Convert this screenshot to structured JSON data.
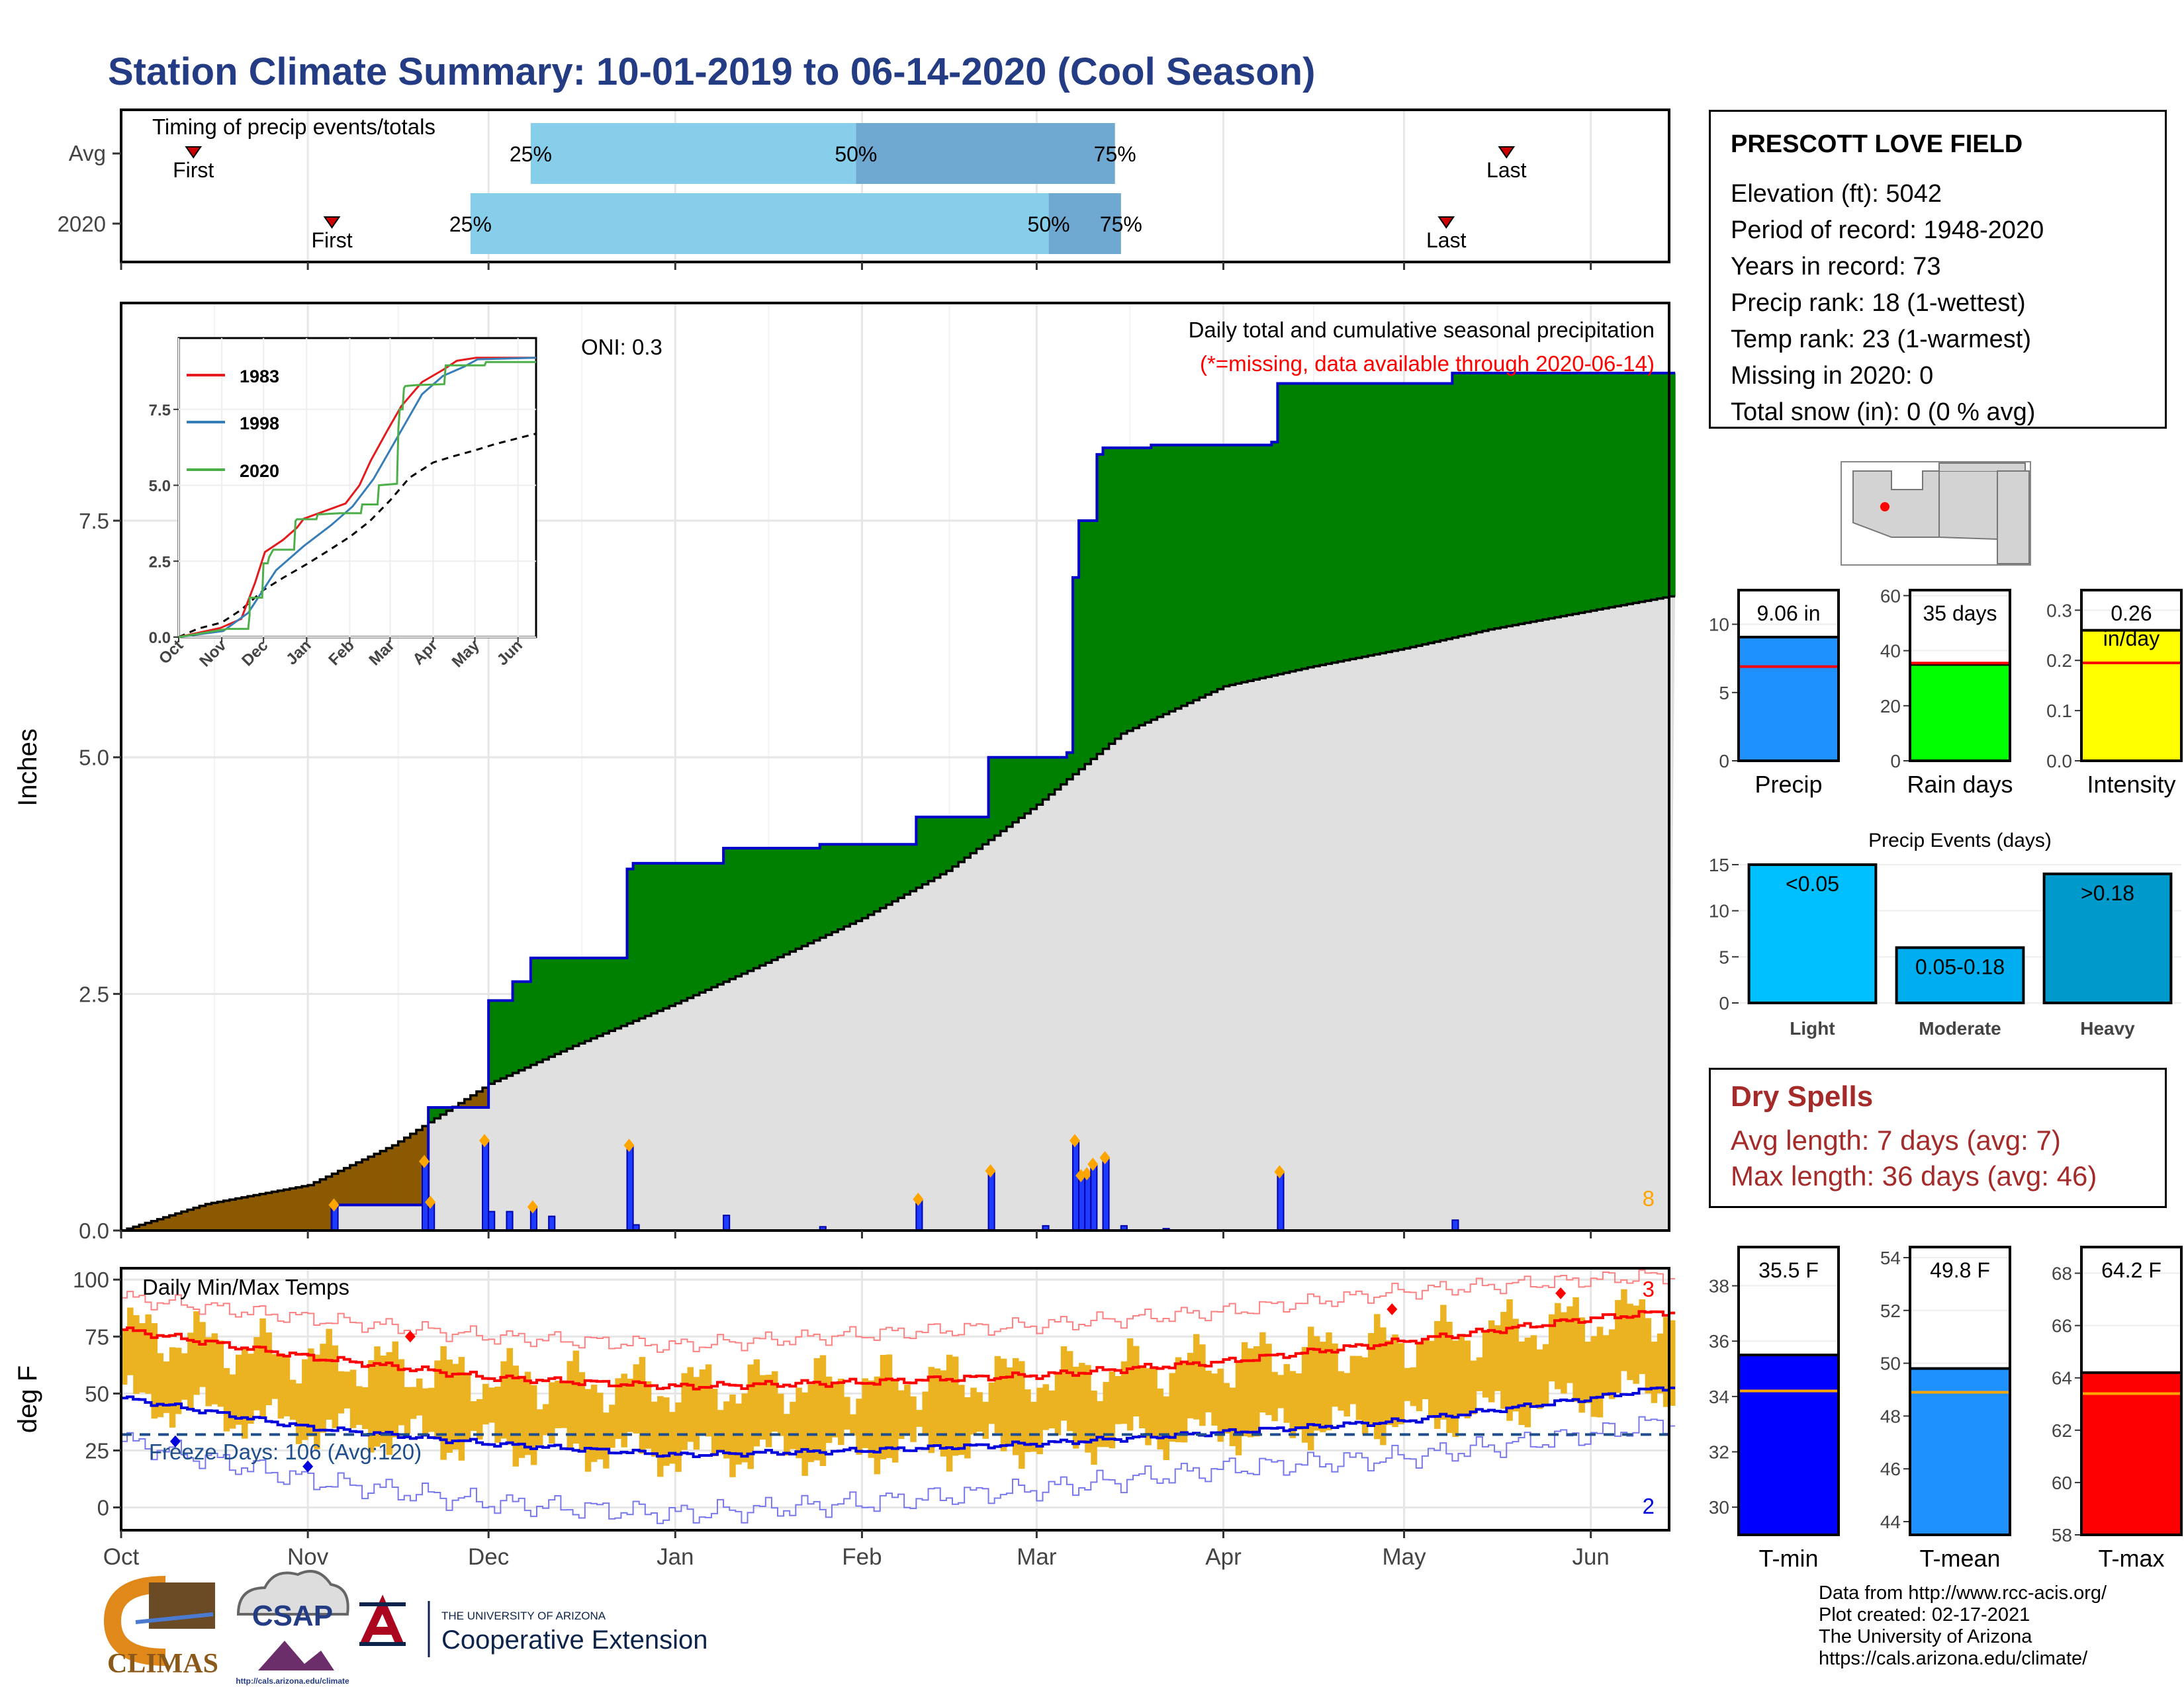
{
  "title": "Station Climate Summary: 10-01-2019 to 06-14-2020 (Cool Season)",
  "timing": {
    "label": "Timing of precip events/totals",
    "rows": [
      "Avg",
      "2020"
    ],
    "avg": {
      "first": "2019-10-13",
      "p25": "2019-12-08",
      "p50": "2020-01-31",
      "p75": "2020-03-14",
      "last": "2020-05-18"
    },
    "season2020": {
      "first": "2019-11-05",
      "p25": "2019-11-28",
      "p50": "2020-03-03",
      "p75": "2020-03-15",
      "last": "2020-05-08"
    },
    "first_label": "First",
    "last_label": "Last",
    "p25_label": "25%",
    "p50_label": "50%",
    "p75_label": "75%"
  },
  "months": [
    "Oct",
    "Nov",
    "Dec",
    "Jan",
    "Feb",
    "Mar",
    "Apr",
    "May",
    "Jun"
  ],
  "precip": {
    "title": "Daily total and cumulative seasonal precipitation",
    "subtitle": "(*=missing, data available through 2020-06-14)",
    "oni": "ONI: 0.3",
    "ylabel": "Inches",
    "yticks": [
      "0.0",
      "2.5",
      "5.0",
      "7.5"
    ],
    "corner_count": "8",
    "colors": {
      "above": "#008000",
      "below": "#8b5a00",
      "normal_fill": "#e0e0e0",
      "obs_line": "#0000cc",
      "daily": "#1e3cff",
      "marker": "#ffa500"
    }
  },
  "inset": {
    "legend": [
      "1983",
      "1998",
      "2020"
    ],
    "colors": [
      "#e41a1c",
      "#377eb8",
      "#4daf4a"
    ],
    "yticks": [
      "0.0",
      "2.5",
      "5.0",
      "7.5"
    ],
    "months": [
      "Oct",
      "Nov",
      "Dec",
      "Jan",
      "Feb",
      "Mar",
      "Apr",
      "May",
      "Jun"
    ]
  },
  "temps": {
    "title": "Daily Min/Max Temps",
    "ylabel": "deg F",
    "yticks": [
      "0",
      "25",
      "50",
      "75",
      "100"
    ],
    "freeze": "Freeze Days: 106 (Avg:120)",
    "count_top": "3",
    "count_bottom": "2",
    "freeze_line": 32,
    "colors": {
      "bars": "#ebb321",
      "max_normal": "#ff0000",
      "min_normal": "#0000dd",
      "record_high": "#ff8080",
      "record_low": "#7777ee",
      "freeze": "#1f4e8c"
    }
  },
  "station": {
    "name": "PRESCOTT LOVE FIELD",
    "lines": [
      "Elevation (ft): 5042",
      "Period of record: 1948-2020",
      "Years in record: 73",
      "Precip rank: 18 (1-wettest)",
      "Temp rank: 23 (1-warmest)",
      "Missing in 2020: 0",
      "Total snow (in): 0 (0 % avg)"
    ]
  },
  "summary_bars": [
    {
      "label": "Precip",
      "value_text": "9.06 in",
      "value": 9.06,
      "avg": 6.9,
      "ymax": 12.5,
      "ticks": [
        "0",
        "5",
        "10"
      ],
      "tickvals": [
        0,
        5,
        10
      ],
      "color": "#1e90ff"
    },
    {
      "label": "Rain days",
      "value_text": "35 days",
      "value": 35,
      "avg": 35.5,
      "ymax": 62,
      "ticks": [
        "0",
        "20",
        "40",
        "60"
      ],
      "tickvals": [
        0,
        20,
        40,
        60
      ],
      "color": "#00ff00"
    },
    {
      "label": "Intensity",
      "value_text": "0.26 in/day",
      "value": 0.26,
      "avg": 0.195,
      "ymax": 0.34,
      "ticks": [
        "0.0",
        "0.1",
        "0.2",
        "0.3"
      ],
      "tickvals": [
        0,
        0.1,
        0.2,
        0.3
      ],
      "color": "#ffff00"
    }
  ],
  "precip_events": {
    "title": "Precip Events (days)",
    "categories": [
      "Light",
      "Moderate",
      "Heavy"
    ],
    "bar_labels": [
      "<0.05",
      "0.05-0.18",
      ">0.18"
    ],
    "values": [
      15,
      6,
      14
    ],
    "yticks": [
      "0",
      "5",
      "10",
      "15"
    ],
    "colors": [
      "#00bfff",
      "#00aeef",
      "#0099cc"
    ]
  },
  "dry_spells": {
    "title": "Dry Spells",
    "avg": "Avg length: 7 days (avg: 7)",
    "max": "Max length: 36 days (avg: 46)"
  },
  "temp_bars": [
    {
      "label": "T-min",
      "value_text": "35.5 F",
      "value": 35.5,
      "avg": 34.2,
      "ymin": 29,
      "ymax": 39.4,
      "ticks": [
        "30",
        "32",
        "34",
        "36",
        "38"
      ],
      "color": "#0000ff"
    },
    {
      "label": "T-mean",
      "value_text": "49.8 F",
      "value": 49.8,
      "avg": 48.9,
      "ymin": 43.5,
      "ymax": 54.4,
      "ticks": [
        "44",
        "46",
        "48",
        "50",
        "52",
        "54"
      ],
      "color": "#1e90ff"
    },
    {
      "label": "T-max",
      "value_text": "64.2 F",
      "value": 64.2,
      "avg": 63.4,
      "ymin": 58,
      "ymax": 69,
      "ticks": [
        "58",
        "60",
        "62",
        "64",
        "66",
        "68"
      ],
      "color": "#ff0000"
    }
  ],
  "credits": [
    "Data from http://www.rcc-acis.org/",
    "Plot created: 02-17-2021",
    "The University of Arizona",
    "https://cals.arizona.edu/climate/"
  ],
  "logos": {
    "climas": "CLIMAS",
    "csap": "CSAP",
    "csap_url": "http://cals.arizona.edu/climate",
    "ua_small": "THE UNIVERSITY OF ARIZONA",
    "ua_big": "Cooperative Extension"
  },
  "chart_data": [
    {
      "type": "area",
      "title": "Daily total and cumulative seasonal precipitation",
      "ylabel": "Inches",
      "ylim": [
        0,
        9.8
      ],
      "x": [
        "Oct",
        "Nov",
        "Dec",
        "Jan",
        "Feb",
        "Mar",
        "Apr",
        "May",
        "Jun"
      ],
      "series": [
        {
          "name": "2020 cumulative",
          "points": [
            [
              "2019-10-01",
              0
            ],
            [
              "2019-11-05",
              0.27
            ],
            [
              "2019-11-20",
              0.27
            ],
            [
              "2019-11-21",
              0.73
            ],
            [
              "2019-11-21",
              1.3
            ],
            [
              "2019-11-30",
              1.3
            ],
            [
              "2019-12-01",
              2.43
            ],
            [
              "2019-12-04",
              2.43
            ],
            [
              "2019-12-05",
              2.63
            ],
            [
              "2019-12-08",
              2.88
            ],
            [
              "2019-12-23",
              2.88
            ],
            [
              "2019-12-24",
              3.82
            ],
            [
              "2019-12-25",
              3.88
            ],
            [
              "2020-01-08",
              3.88
            ],
            [
              "2020-01-09",
              4.04
            ],
            [
              "2020-01-25",
              4.08
            ],
            [
              "2020-02-09",
              4.08
            ],
            [
              "2020-02-10",
              4.37
            ],
            [
              "2020-02-21",
              4.37
            ],
            [
              "2020-02-22",
              5.0
            ],
            [
              "2020-03-06",
              5.05
            ],
            [
              "2020-03-07",
              6.9
            ],
            [
              "2020-03-08",
              7.5
            ],
            [
              "2020-03-10",
              7.5
            ],
            [
              "2020-03-11",
              8.2
            ],
            [
              "2020-03-12",
              8.27
            ],
            [
              "2020-03-20",
              8.3
            ],
            [
              "2020-04-09",
              8.33
            ],
            [
              "2020-04-10",
              8.95
            ],
            [
              "2020-05-08",
              8.95
            ],
            [
              "2020-05-09",
              9.06
            ],
            [
              "2020-06-14",
              9.06
            ]
          ]
        },
        {
          "name": "Average cumulative",
          "points": [
            [
              "2019-10-01",
              0
            ],
            [
              "2019-10-15",
              0.28
            ],
            [
              "2019-11-01",
              0.48
            ],
            [
              "2019-11-15",
              0.9
            ],
            [
              "2019-12-01",
              1.55
            ],
            [
              "2019-12-15",
              1.95
            ],
            [
              "2020-01-01",
              2.4
            ],
            [
              "2020-01-15",
              2.8
            ],
            [
              "2020-02-01",
              3.3
            ],
            [
              "2020-02-15",
              3.8
            ],
            [
              "2020-03-01",
              4.5
            ],
            [
              "2020-03-15",
              5.25
            ],
            [
              "2020-04-01",
              5.75
            ],
            [
              "2020-04-15",
              5.95
            ],
            [
              "2020-05-01",
              6.15
            ],
            [
              "2020-05-15",
              6.35
            ],
            [
              "2020-06-01",
              6.55
            ],
            [
              "2020-06-14",
              6.7
            ]
          ]
        },
        {
          "name": "Daily precipitation",
          "points": [
            [
              "2019-11-05",
              0.27
            ],
            [
              "2019-11-20",
              0.73
            ],
            [
              "2019-11-21",
              0.3
            ],
            [
              "2019-11-30",
              0.95
            ],
            [
              "2019-12-01",
              0.2
            ],
            [
              "2019-12-04",
              0.2
            ],
            [
              "2019-12-08",
              0.25
            ],
            [
              "2019-12-11",
              0.15
            ],
            [
              "2019-12-24",
              0.9
            ],
            [
              "2019-12-25",
              0.06
            ],
            [
              "2020-01-09",
              0.16
            ],
            [
              "2020-01-25",
              0.04
            ],
            [
              "2020-02-10",
              0.33
            ],
            [
              "2020-02-22",
              0.63
            ],
            [
              "2020-03-02",
              0.05
            ],
            [
              "2020-03-07",
              0.95
            ],
            [
              "2020-03-08",
              0.58
            ],
            [
              "2020-03-09",
              0.6
            ],
            [
              "2020-03-10",
              0.7
            ],
            [
              "2020-03-12",
              0.77
            ],
            [
              "2020-03-15",
              0.05
            ],
            [
              "2020-03-22",
              0.02
            ],
            [
              "2020-04-10",
              0.62
            ],
            [
              "2020-05-09",
              0.11
            ]
          ]
        }
      ]
    },
    {
      "type": "line",
      "title": "Daily Min/Max Temps",
      "ylabel": "deg F",
      "ylim": [
        -10,
        105
      ],
      "series": [
        {
          "name": "Normal max",
          "points": [
            [
              "2019-10-01",
              78
            ],
            [
              "2019-11-01",
              66
            ],
            [
              "2019-12-01",
              57
            ],
            [
              "2020-01-01",
              53
            ],
            [
              "2020-02-01",
              55
            ],
            [
              "2020-03-01",
              58
            ],
            [
              "2020-04-01",
              64
            ],
            [
              "2020-05-01",
              73
            ],
            [
              "2020-06-01",
              83
            ],
            [
              "2020-06-14",
              86
            ]
          ]
        },
        {
          "name": "Normal min",
          "points": [
            [
              "2019-10-01",
              48
            ],
            [
              "2019-11-01",
              35
            ],
            [
              "2019-12-01",
              28
            ],
            [
              "2020-01-01",
              23
            ],
            [
              "2020-02-01",
              25
            ],
            [
              "2020-03-01",
              28
            ],
            [
              "2020-04-01",
              33
            ],
            [
              "2020-05-01",
              38
            ],
            [
              "2020-06-01",
              48
            ],
            [
              "2020-06-14",
              53
            ]
          ]
        },
        {
          "name": "Record high",
          "points": [
            [
              "2019-10-01",
              92
            ],
            [
              "2019-11-01",
              83
            ],
            [
              "2019-12-01",
              75
            ],
            [
              "2020-01-01",
              71
            ],
            [
              "2020-02-01",
              76
            ],
            [
              "2020-03-01",
              80
            ],
            [
              "2020-04-01",
              86
            ],
            [
              "2020-05-01",
              95
            ],
            [
              "2020-06-01",
              100
            ],
            [
              "2020-06-14",
              102
            ]
          ]
        },
        {
          "name": "Record low",
          "points": [
            [
              "2019-10-01",
              29
            ],
            [
              "2019-11-01",
              12
            ],
            [
              "2019-12-01",
              2
            ],
            [
              "2020-01-01",
              -3
            ],
            [
              "2020-02-01",
              2
            ],
            [
              "2020-03-01",
              8
            ],
            [
              "2020-04-01",
              17
            ],
            [
              "2020-05-01",
              22
            ],
            [
              "2020-06-01",
              32
            ],
            [
              "2020-06-14",
              38
            ]
          ]
        }
      ]
    },
    {
      "type": "bar",
      "title": "Precip Events (days)",
      "categories": [
        "Light",
        "Moderate",
        "Heavy"
      ],
      "values": [
        15,
        6,
        14
      ]
    },
    {
      "type": "bar",
      "categories": [
        "Precip",
        "Rain days",
        "Intensity"
      ],
      "values": [
        9.06,
        35,
        0.26
      ]
    },
    {
      "type": "bar",
      "categories": [
        "T-min",
        "T-mean",
        "T-max"
      ],
      "values": [
        35.5,
        49.8,
        64.2
      ]
    }
  ]
}
